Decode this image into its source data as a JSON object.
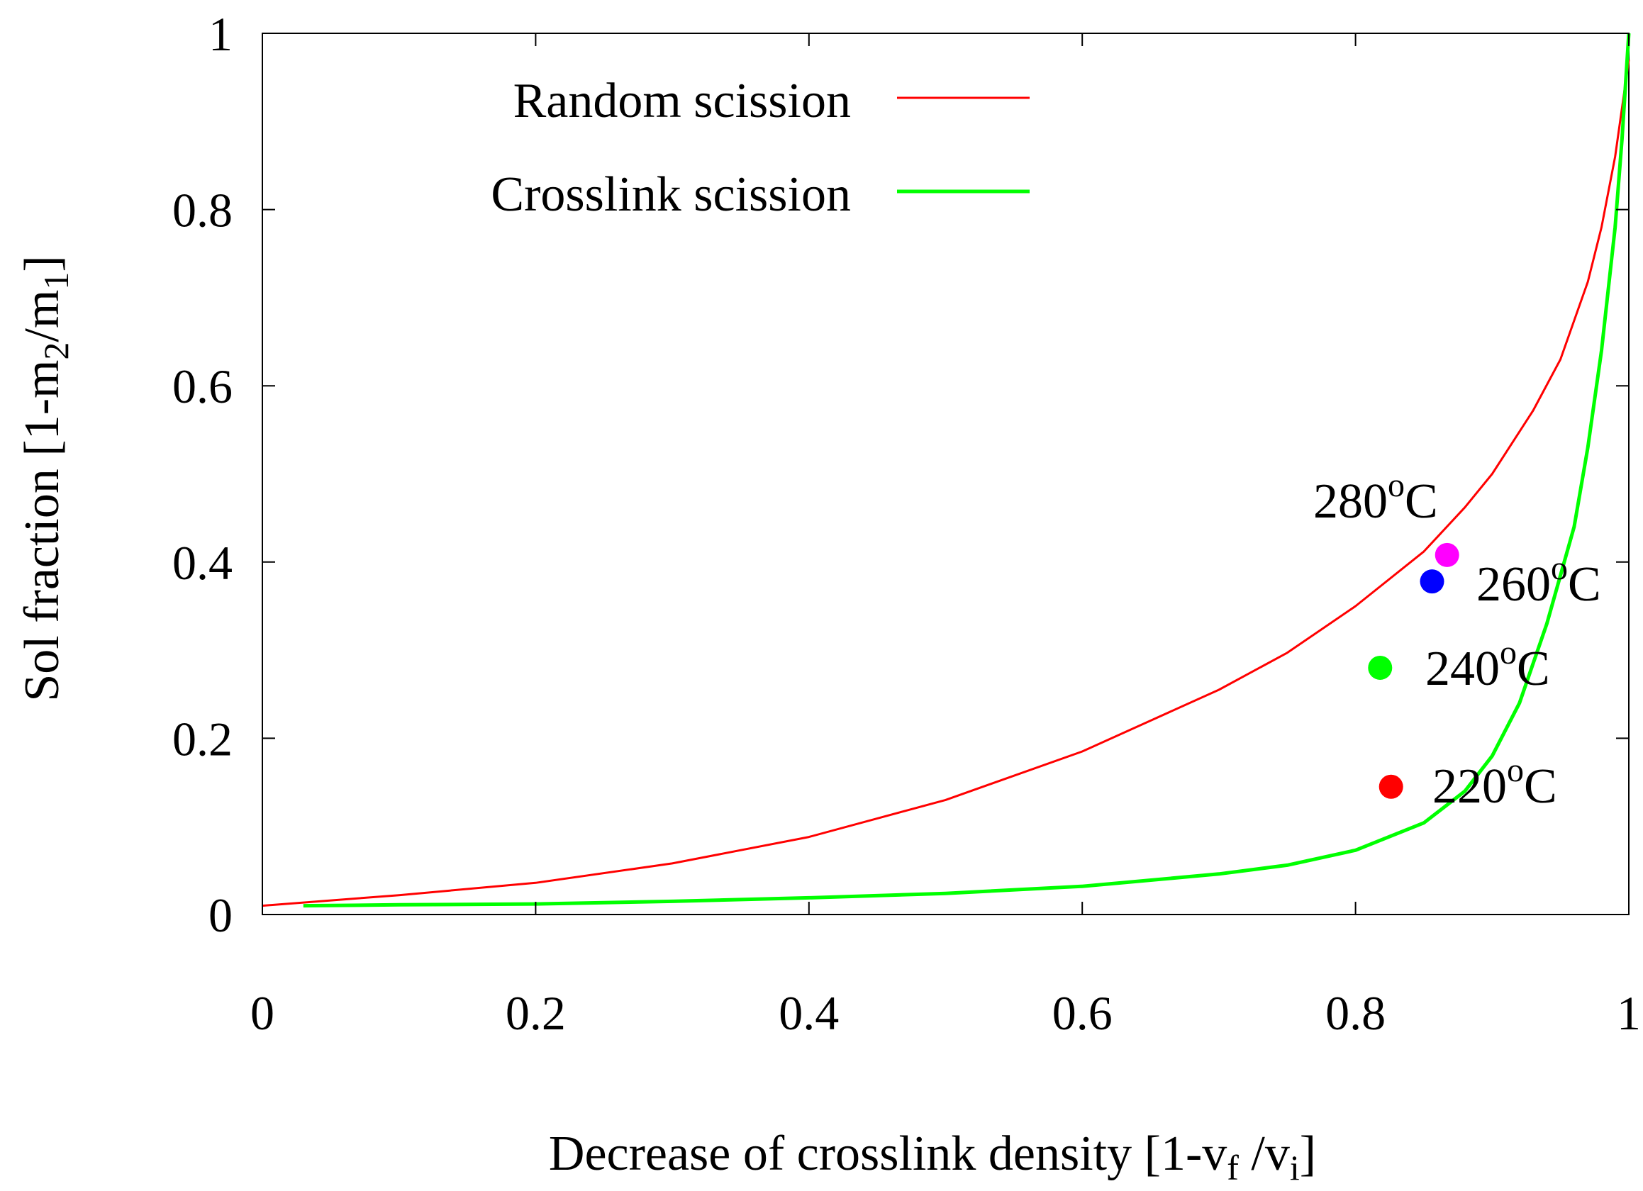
{
  "chart_data": {
    "type": "line",
    "title": "",
    "xlabel": "Decrease of crosslink density [1-v_f /v_i]",
    "xlabel_parts": {
      "main": "Decrease of crosslink density [1-v",
      "sub1": "f",
      "mid": " /v",
      "sub2": "i",
      "end": "]"
    },
    "ylabel": "Sol fraction [1-m_2/m_1]",
    "ylabel_parts": {
      "main": "Sol fraction [1-m",
      "sub1": "2",
      "mid": "/m",
      "sub2": "1",
      "end": "]"
    },
    "xlim": [
      0,
      1
    ],
    "ylim": [
      0,
      1
    ],
    "x_ticks": [
      {
        "value": 0,
        "label": "0"
      },
      {
        "value": 0.2,
        "label": "0.2"
      },
      {
        "value": 0.4,
        "label": "0.4"
      },
      {
        "value": 0.6,
        "label": "0.6"
      },
      {
        "value": 0.8,
        "label": "0.8"
      },
      {
        "value": 1,
        "label": "1"
      }
    ],
    "y_ticks": [
      {
        "value": 0,
        "label": "0"
      },
      {
        "value": 0.2,
        "label": "0.2"
      },
      {
        "value": 0.4,
        "label": "0.4"
      },
      {
        "value": 0.6,
        "label": "0.6"
      },
      {
        "value": 0.8,
        "label": "0.8"
      },
      {
        "value": 1,
        "label": "1"
      }
    ],
    "grid": false,
    "legend_position": "top-left",
    "series": [
      {
        "name": "Random scission",
        "color": "#ff0000",
        "x": [
          0,
          0.1,
          0.2,
          0.3,
          0.4,
          0.5,
          0.6,
          0.7,
          0.75,
          0.8,
          0.85,
          0.88,
          0.9,
          0.93,
          0.95,
          0.97,
          0.98,
          0.99,
          1.0
        ],
        "y": [
          0.01,
          0.022,
          0.036,
          0.058,
          0.088,
          0.13,
          0.185,
          0.255,
          0.297,
          0.35,
          0.412,
          0.462,
          0.5,
          0.572,
          0.63,
          0.718,
          0.78,
          0.86,
          0.97
        ]
      },
      {
        "name": "Crosslink scission",
        "color": "#00ff00",
        "x": [
          0.03,
          0.1,
          0.2,
          0.3,
          0.4,
          0.5,
          0.6,
          0.7,
          0.75,
          0.8,
          0.85,
          0.88,
          0.9,
          0.92,
          0.94,
          0.96,
          0.97,
          0.98,
          0.99,
          0.995,
          1.0
        ],
        "y": [
          0.01,
          0.011,
          0.012,
          0.015,
          0.019,
          0.024,
          0.032,
          0.046,
          0.056,
          0.073,
          0.104,
          0.14,
          0.18,
          0.24,
          0.33,
          0.44,
          0.53,
          0.64,
          0.78,
          0.88,
          1.0
        ]
      }
    ],
    "points": [
      {
        "label": "220",
        "x": 0.826,
        "y": 0.145,
        "color": "#ff0000"
      },
      {
        "label": "240",
        "x": 0.818,
        "y": 0.28,
        "color": "#00ff00"
      },
      {
        "label": "260",
        "x": 0.856,
        "y": 0.378,
        "color": "#0000ff"
      },
      {
        "label": "280",
        "x": 0.867,
        "y": 0.408,
        "color": "#ff00ff"
      }
    ],
    "degree_sup": "o",
    "degree_unit": "C"
  }
}
